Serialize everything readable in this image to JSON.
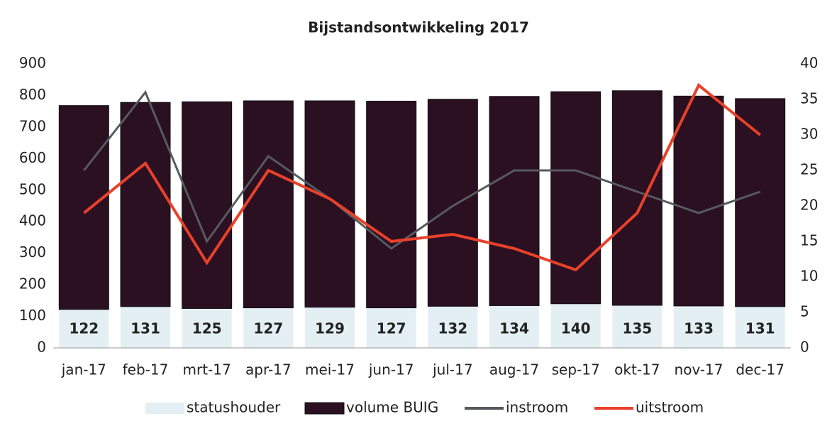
{
  "chart_data": {
    "type": "bar",
    "title": "Bijstandsontwikkeling 2017",
    "categories": [
      "jan-17",
      "feb-17",
      "mrt-17",
      "apr-17",
      "mei-17",
      "jun-17",
      "jul-17",
      "aug-17",
      "sep-17",
      "okt-17",
      "nov-17",
      "dec-17"
    ],
    "stacked": true,
    "series": [
      {
        "name": "statushouder",
        "color": "#e4eff4",
        "values": [
          122,
          131,
          125,
          127,
          129,
          127,
          132,
          134,
          140,
          135,
          133,
          131
        ]
      },
      {
        "name": "volume BUIG",
        "color": "#2b1022",
        "values": [
          646,
          647,
          655,
          656,
          654,
          655,
          656,
          663,
          672,
          680,
          665,
          659
        ]
      },
      {
        "name": "instroom",
        "type": "line",
        "axis": "y2",
        "color": "#555a60",
        "values": [
          25,
          36,
          15,
          27,
          21,
          14,
          20,
          25,
          25,
          22,
          19,
          22
        ]
      },
      {
        "name": "uitstroom",
        "type": "line",
        "axis": "y2",
        "color": "#e8412a",
        "values": [
          19,
          26,
          12,
          25,
          21,
          15,
          16,
          14,
          11,
          19,
          37,
          30
        ]
      }
    ],
    "ylim": [
      0,
      900
    ],
    "yticks": [
      0,
      100,
      200,
      300,
      400,
      500,
      600,
      700,
      800,
      900
    ],
    "y2lim": [
      0,
      40
    ],
    "y2ticks": [
      0,
      5,
      10,
      15,
      20,
      25,
      30,
      35,
      40
    ],
    "legend": "bottom"
  }
}
